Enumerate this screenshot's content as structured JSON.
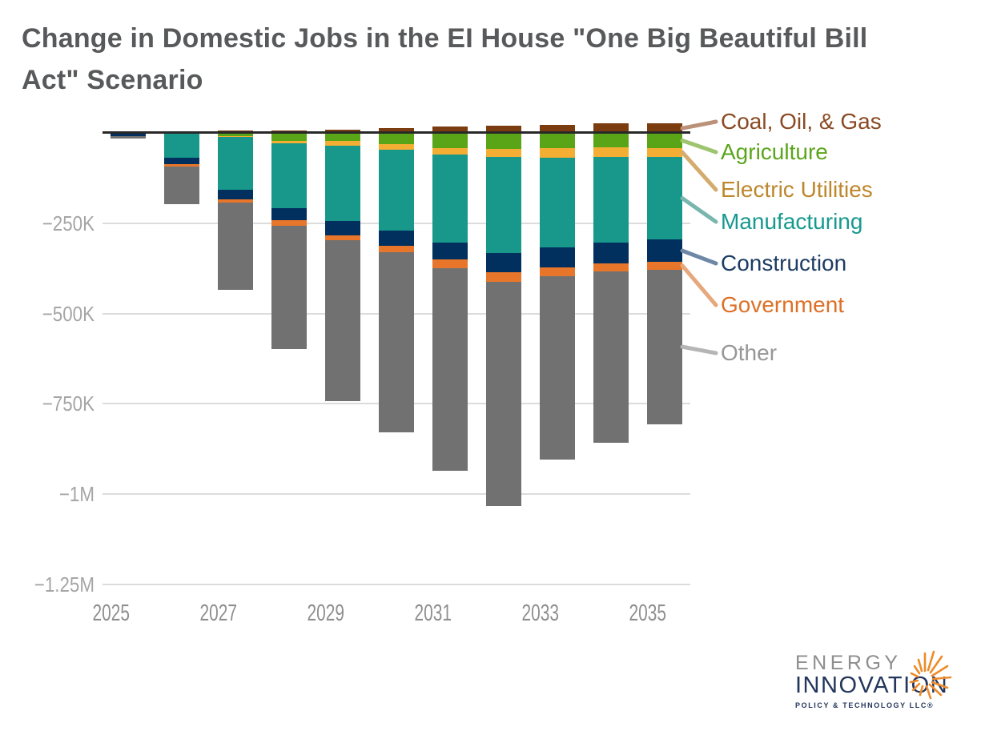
{
  "header": {
    "title_line1": "Change in Domestic Jobs in the EI House \"One Big Beautiful Bill",
    "title_line2": "Act\" Scenario"
  },
  "chart_data": {
    "type": "bar",
    "stacked": true,
    "title": "Change in Domestic Jobs in the EI House \"One Big Beautiful Bill Act\" Scenario",
    "units": "jobs (values in thousands, negative = jobs lost)",
    "x": [
      2025,
      2026,
      2027,
      2028,
      2029,
      2030,
      2031,
      2032,
      2033,
      2034,
      2035
    ],
    "x_tick_labels": [
      "2025",
      "2027",
      "2029",
      "2031",
      "2033",
      "2035"
    ],
    "y_ticks": [
      {
        "value": -250000,
        "label": "−250K"
      },
      {
        "value": -500000,
        "label": "−500K"
      },
      {
        "value": -750000,
        "label": "−750K"
      },
      {
        "value": -1000000,
        "label": "−1M"
      },
      {
        "value": -1250000,
        "label": "−1.25M"
      }
    ],
    "ylim": [
      -1250000,
      60000
    ],
    "grid": true,
    "legend_position": "right",
    "series": [
      {
        "name": "Coal, Oil, & Gas",
        "color": "#7b3c10",
        "values_k": [
          0,
          0,
          8,
          8,
          10,
          14,
          18,
          22,
          24,
          27,
          28
        ]
      },
      {
        "name": "Agriculture",
        "color": "#5aa517",
        "values_k": [
          0,
          0,
          -7,
          -20,
          -21,
          -30,
          -40,
          -43,
          -42,
          -39,
          -40
        ]
      },
      {
        "name": "Electric Utilities",
        "color": "#f3ae33",
        "values_k": [
          0,
          0,
          -3,
          -8,
          -13,
          -15,
          -19,
          -22,
          -25,
          -26,
          -25
        ]
      },
      {
        "name": "Manufacturing",
        "color": "#17988b",
        "values_k": [
          -1,
          -68,
          -146,
          -179,
          -210,
          -225,
          -245,
          -267,
          -250,
          -237,
          -230
        ]
      },
      {
        "name": "Construction",
        "color": "#012f5e",
        "values_k": [
          -6,
          -18,
          -27,
          -34,
          -38,
          -41,
          -46,
          -53,
          -56,
          -58,
          -61
        ]
      },
      {
        "name": "Government",
        "color": "#e8762a",
        "values_k": [
          -1,
          -6,
          -10,
          -16,
          -15,
          -19,
          -24,
          -26,
          -24,
          -24,
          -22
        ]
      },
      {
        "name": "Other",
        "color": "#717171",
        "values_k": [
          -6,
          -104,
          -240,
          -342,
          -446,
          -499,
          -562,
          -622,
          -508,
          -474,
          -428
        ]
      }
    ],
    "legend": [
      {
        "label": "Coal, Oil, & Gas",
        "text_color": "#8a4a23",
        "line_color": "#bb9179",
        "series_index": 0
      },
      {
        "label": "Agriculture",
        "text_color": "#5ca51c",
        "line_color": "#9dc46e",
        "series_index": 1
      },
      {
        "label": "Electric Utilities",
        "text_color": "#bd872c",
        "line_color": "#d3ac6e",
        "series_index": 2
      },
      {
        "label": "Manufacturing",
        "text_color": "#17998f",
        "line_color": "#79b6ae",
        "series_index": 3
      },
      {
        "label": "Construction",
        "text_color": "#1c3c63",
        "line_color": "#6e87a6",
        "series_index": 4
      },
      {
        "label": "Government",
        "text_color": "#dd7026",
        "line_color": "#e6a87c",
        "series_index": 5
      },
      {
        "label": "Other",
        "text_color": "#979797",
        "line_color": "#b5b5b5",
        "series_index": 6
      }
    ]
  },
  "logo": {
    "line1": "ENERGY",
    "line2": "INNOVATION",
    "line3": "POLICY & TECHNOLOGY LLC®",
    "accent_color": "#ee8b2a"
  }
}
